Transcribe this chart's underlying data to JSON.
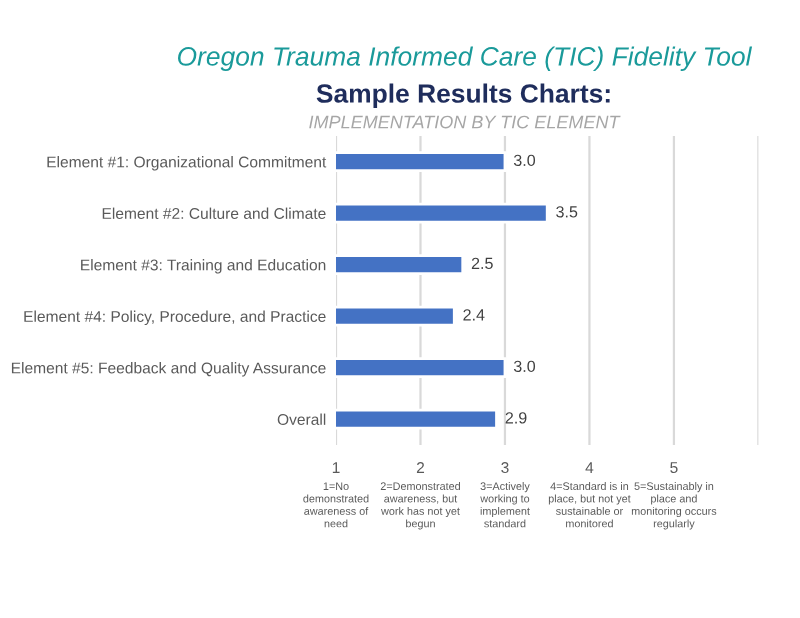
{
  "chart_data": {
    "type": "bar",
    "orientation": "horizontal",
    "title": "Oregon Trauma Informed Care (TIC) Fidelity Tool",
    "subtitle": "Sample Results Charts:",
    "categories": [
      "Element #1: Organizational Commitment",
      "Element #2: Culture and Climate",
      "Element #3: Training and Education",
      "Element #4: Policy, Procedure, and Practice",
      "Element #5: Feedback and Quality Assurance",
      "Overall"
    ],
    "values": [
      3.0,
      3.5,
      2.5,
      2.4,
      3.0,
      2.9
    ],
    "value_labels": [
      "3.0",
      "3.5",
      "2.5",
      "2.4",
      "3.0",
      "2.9"
    ],
    "color": "#4472c4",
    "xlim": [
      1,
      6
    ],
    "xticks": [
      1,
      2,
      3,
      4,
      5,
      {
        "value": 6,
        "label": null
      }
    ],
    "grid": "x",
    "annotations": [
      "IMPLEMENTATION BY TIC ELEMENT",
      "1=No\ndemonstrated\nawareness of\nneed",
      "2=Demonstrated\nawareness, but\nwork has not yet\nbegun",
      "3=Actively\nworking to\nimplement\nstandard",
      "4=Standard is in\nplace, but not yet\nsustainable or\nmonitored",
      "5=Sustainably in\nplace and\nmonitoring occurs\nregularly"
    ]
  }
}
